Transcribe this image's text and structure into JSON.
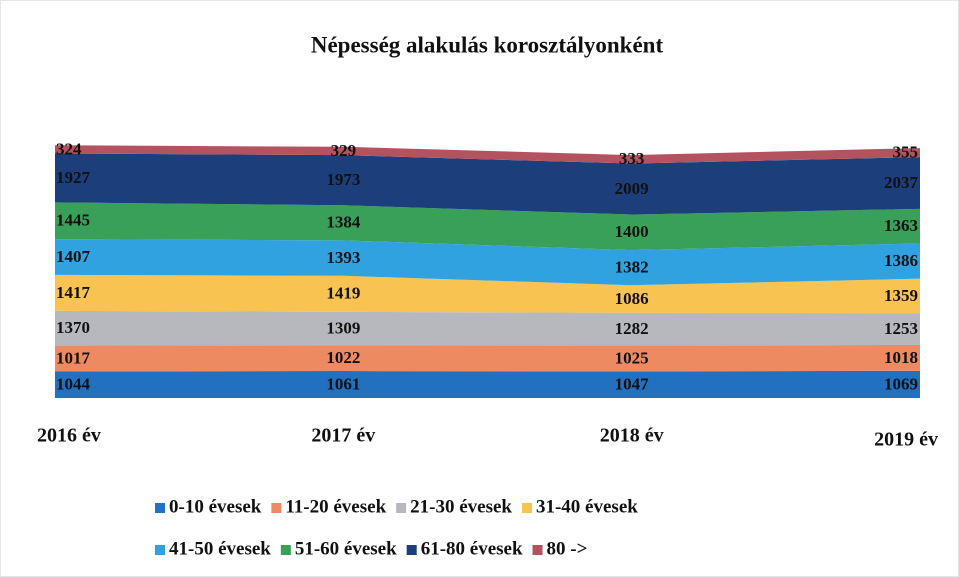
{
  "chart_data": {
    "type": "stacked-area",
    "title": "Népesség alakulás korosztályonként",
    "categories": [
      "2016 év",
      "2017 év",
      "2018 év",
      "2019 év"
    ],
    "ylim": [
      0,
      10000
    ],
    "series": [
      {
        "name": "0-10 évesek",
        "color": "#2271c0",
        "values": [
          1044,
          1061,
          1047,
          1069
        ]
      },
      {
        "name": "11-20 évesek",
        "color": "#ee8a62",
        "values": [
          1017,
          1022,
          1025,
          1018
        ]
      },
      {
        "name": "21-30 évesek",
        "color": "#b7b8bd",
        "values": [
          1370,
          1309,
          1282,
          1253
        ]
      },
      {
        "name": "31-40 évesek",
        "color": "#f8c350",
        "values": [
          1417,
          1419,
          1086,
          1359
        ]
      },
      {
        "name": "41-50 évesek",
        "color": "#2fa2df",
        "values": [
          1407,
          1393,
          1382,
          1386
        ]
      },
      {
        "name": "51-60 évesek",
        "color": "#38a059",
        "values": [
          1445,
          1384,
          1400,
          1363
        ]
      },
      {
        "name": "61-80 évesek",
        "color": "#1c3e7b",
        "values": [
          1927,
          1973,
          2009,
          2037
        ]
      },
      {
        "name": "80 ->",
        "color": "#b4525f",
        "values": [
          324,
          329,
          333,
          355
        ]
      }
    ]
  }
}
